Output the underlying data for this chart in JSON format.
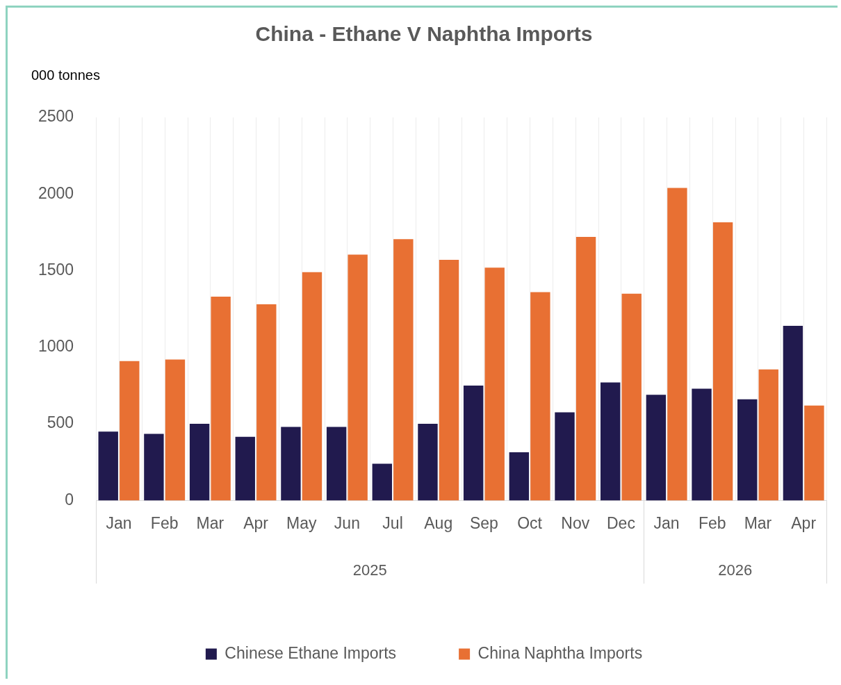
{
  "chart_data": {
    "type": "bar",
    "title": "China - Ethane V Naphtha Imports",
    "ylabel": "000 tonnes",
    "categories": [
      "Jan",
      "Feb",
      "Mar",
      "Apr",
      "May",
      "Jun",
      "Jul",
      "Aug",
      "Sep",
      "Oct",
      "Nov",
      "Dec",
      "Jan",
      "Feb",
      "Mar",
      "Apr"
    ],
    "annotations": [
      "2025",
      "2026"
    ],
    "series": [
      {
        "name": "Chinese Ethane Imports",
        "color": "#211a4e",
        "values": [
          450,
          435,
          500,
          415,
          480,
          480,
          240,
          500,
          750,
          315,
          575,
          770,
          690,
          730,
          660,
          1140
        ]
      },
      {
        "name": "China Naphtha Imports",
        "color": "#e87033",
        "values": [
          910,
          920,
          1330,
          1280,
          1490,
          1605,
          1705,
          1570,
          1520,
          1360,
          1720,
          1350,
          2040,
          1815,
          855,
          620
        ]
      }
    ],
    "ylim": [
      0,
      2500
    ],
    "yticks": [
      0,
      500,
      1000,
      1500,
      2000,
      2500
    ],
    "grid": "x",
    "legend": "bottom"
  }
}
